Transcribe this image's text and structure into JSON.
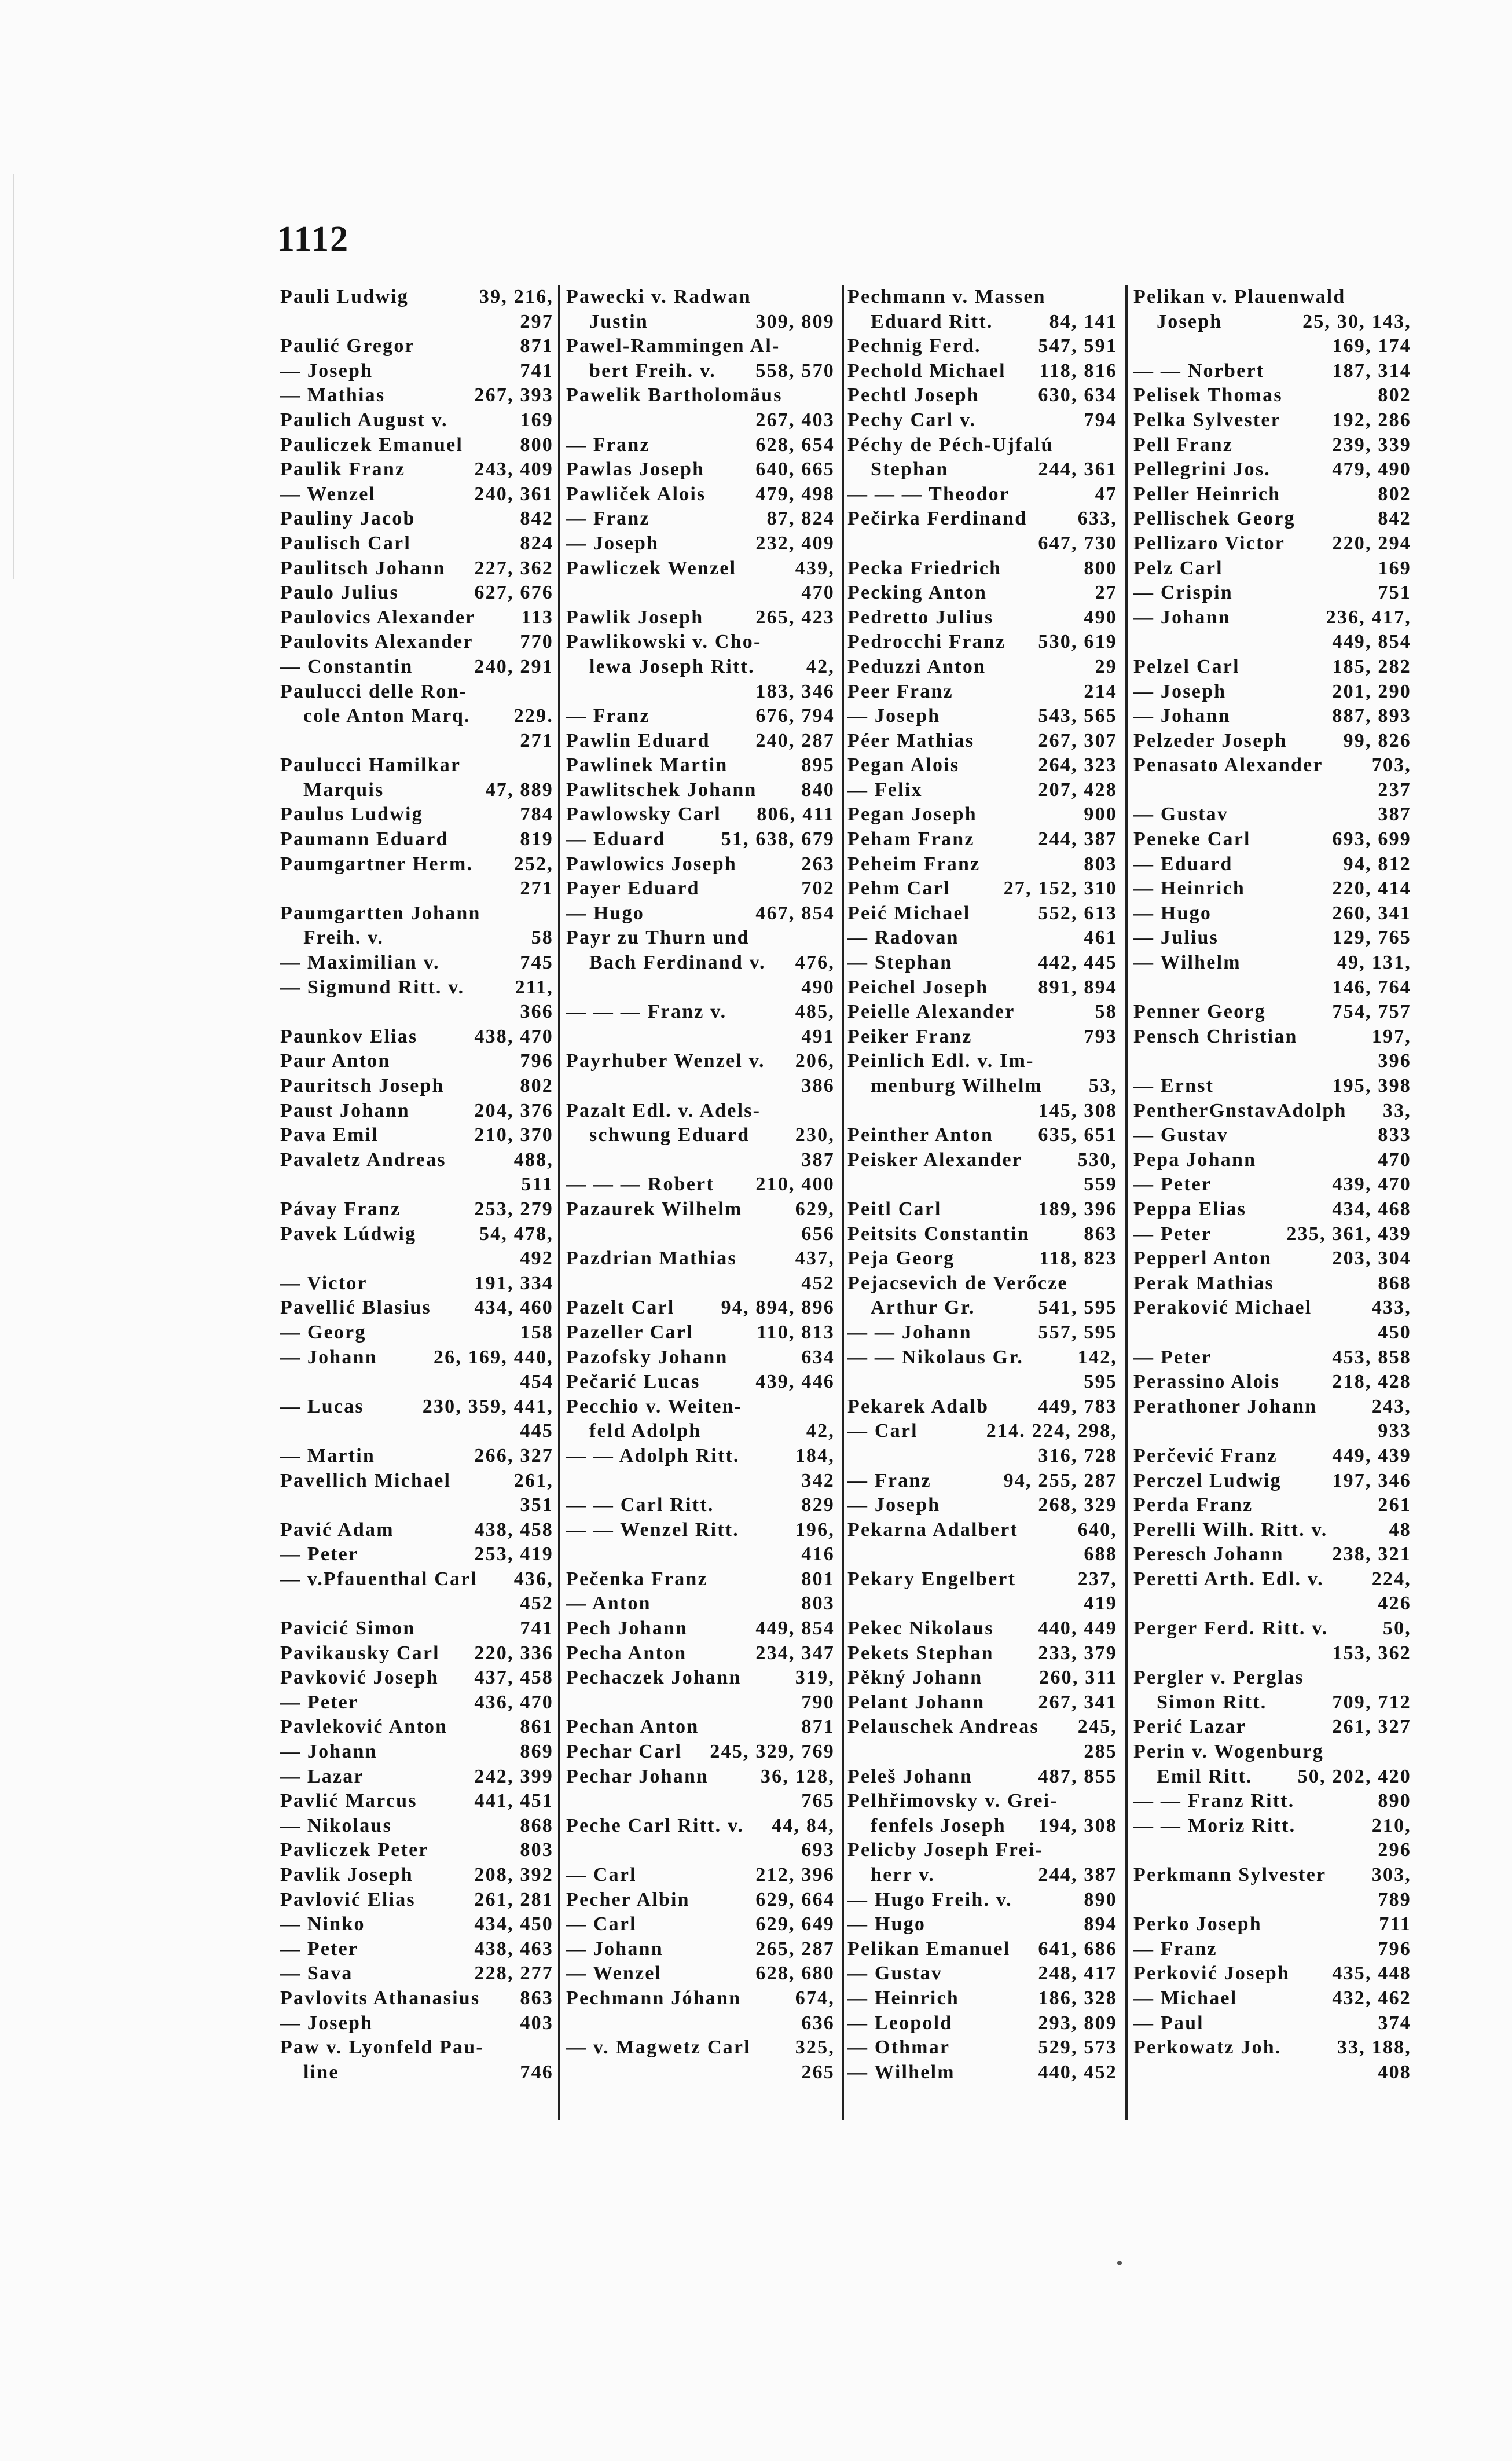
{
  "page_number": "1112",
  "columns": [
    [
      {
        "t": "Pauli Ludwig",
        "p": "39, 216,"
      },
      {
        "t": "",
        "p": "297"
      },
      {
        "t": "Paulić Gregor",
        "p": "871"
      },
      {
        "t": "— Joseph",
        "p": "741"
      },
      {
        "t": "— Mathias",
        "p": "267, 393"
      },
      {
        "t": "Paulich August v.",
        "p": "169"
      },
      {
        "t": "Pauliczek Emanuel",
        "p": "800"
      },
      {
        "t": "Paulik Franz",
        "p": "243, 409"
      },
      {
        "t": "— Wenzel",
        "p": "240, 361"
      },
      {
        "t": "Pauliny Jacob",
        "p": "842"
      },
      {
        "t": "Paulisch Carl",
        "p": "824"
      },
      {
        "t": "Paulitsch Johann",
        "p": "227, 362"
      },
      {
        "t": "Paulo Julius",
        "p": "627, 676"
      },
      {
        "t": "Paulovics Alexander",
        "p": "113"
      },
      {
        "t": "Paulovits Alexander",
        "p": "770"
      },
      {
        "t": "— Constantin",
        "p": "240, 291"
      },
      {
        "t": "Paulucci delle Ron-",
        "p": ""
      },
      {
        "t": "cole Anton Marq.",
        "p": "229.",
        "c": true
      },
      {
        "t": "",
        "p": "271"
      },
      {
        "t": "Paulucci Hamilkar",
        "p": ""
      },
      {
        "t": "Marquis",
        "p": "47, 889",
        "c": true
      },
      {
        "t": "Paulus Ludwig",
        "p": "784"
      },
      {
        "t": "Paumann Eduard",
        "p": "819"
      },
      {
        "t": "Paumgartner Herm.",
        "p": "252,"
      },
      {
        "t": "",
        "p": "271"
      },
      {
        "t": "Paumgartten Johann",
        "p": ""
      },
      {
        "t": "Freih. v.",
        "p": "58",
        "c": true
      },
      {
        "t": "— Maximilian v.",
        "p": "745"
      },
      {
        "t": "— Sigmund Ritt. v.",
        "p": "211,"
      },
      {
        "t": "",
        "p": "366"
      },
      {
        "t": "Paunkov Elias",
        "p": "438, 470"
      },
      {
        "t": "Paur Anton",
        "p": "796"
      },
      {
        "t": "Pauritsch Joseph",
        "p": "802"
      },
      {
        "t": "Paust Johann",
        "p": "204, 376"
      },
      {
        "t": "Pava Emil",
        "p": "210, 370"
      },
      {
        "t": "Pavaletz Andreas",
        "p": "488,"
      },
      {
        "t": "",
        "p": "511"
      },
      {
        "t": "Pávay Franz",
        "p": "253, 279"
      },
      {
        "t": "Pavek Lúdwig",
        "p": "54, 478,"
      },
      {
        "t": "",
        "p": "492"
      },
      {
        "t": "— Victor",
        "p": "191, 334"
      },
      {
        "t": "Pavellić Blasius",
        "p": "434, 460"
      },
      {
        "t": "— Georg",
        "p": "158"
      },
      {
        "t": "— Johann",
        "p": "26, 169, 440,"
      },
      {
        "t": "",
        "p": "454"
      },
      {
        "t": "— Lucas",
        "p": "230, 359, 441,"
      },
      {
        "t": "",
        "p": "445"
      },
      {
        "t": "— Martin",
        "p": "266, 327"
      },
      {
        "t": "Pavellich Michael",
        "p": "261,"
      },
      {
        "t": "",
        "p": "351"
      },
      {
        "t": "Pavić Adam",
        "p": "438, 458"
      },
      {
        "t": "— Peter",
        "p": "253, 419"
      },
      {
        "t": "— v.Pfauenthal Carl",
        "p": "436,"
      },
      {
        "t": "",
        "p": "452"
      },
      {
        "t": "Pavicić Simon",
        "p": "741"
      },
      {
        "t": "Pavikausky Carl",
        "p": "220, 336"
      },
      {
        "t": "Pavković Joseph",
        "p": "437, 458"
      },
      {
        "t": "— Peter",
        "p": "436, 470"
      },
      {
        "t": "Pavleković Anton",
        "p": "861"
      },
      {
        "t": "— Johann",
        "p": "869"
      },
      {
        "t": "— Lazar",
        "p": "242, 399"
      },
      {
        "t": "Pavlić Marcus",
        "p": "441, 451"
      },
      {
        "t": "— Nikolaus",
        "p": "868"
      },
      {
        "t": "Pavliczek Peter",
        "p": "803"
      },
      {
        "t": "Pavlik Joseph",
        "p": "208, 392"
      },
      {
        "t": "Pavlović Elias",
        "p": "261, 281"
      },
      {
        "t": "— Ninko",
        "p": "434, 450"
      },
      {
        "t": "— Peter",
        "p": "438, 463"
      },
      {
        "t": "— Sava",
        "p": "228, 277"
      },
      {
        "t": "Pavlovits Athanasius",
        "p": "863"
      },
      {
        "t": "— Joseph",
        "p": "403"
      },
      {
        "t": "Paw v. Lyonfeld Pau-",
        "p": ""
      },
      {
        "t": "line",
        "p": "746",
        "c": true
      }
    ],
    [
      {
        "t": "Pawecki v. Radwan",
        "p": ""
      },
      {
        "t": "Justin",
        "p": "309, 809",
        "c": true
      },
      {
        "t": "Pawel-Rammingen Al-",
        "p": ""
      },
      {
        "t": "bert Freih. v.",
        "p": "558, 570",
        "c": true
      },
      {
        "t": "Pawelik Bartholomäus",
        "p": ""
      },
      {
        "t": "",
        "p": "267, 403"
      },
      {
        "t": "— Franz",
        "p": "628, 654"
      },
      {
        "t": "Pawlas Joseph",
        "p": "640, 665"
      },
      {
        "t": "Pawliček Alois",
        "p": "479, 498"
      },
      {
        "t": "— Franz",
        "p": "87, 824"
      },
      {
        "t": "— Joseph",
        "p": "232, 409"
      },
      {
        "t": "Pawliczek Wenzel",
        "p": "439,"
      },
      {
        "t": "",
        "p": "470"
      },
      {
        "t": "Pawlik Joseph",
        "p": "265, 423"
      },
      {
        "t": "Pawlikowski v. Cho-",
        "p": ""
      },
      {
        "t": "lewa Joseph Ritt.",
        "p": "42,",
        "c": true
      },
      {
        "t": "",
        "p": "183, 346"
      },
      {
        "t": "— Franz",
        "p": "676, 794"
      },
      {
        "t": "Pawlin Eduard",
        "p": "240, 287"
      },
      {
        "t": "Pawlinek Martin",
        "p": "895"
      },
      {
        "t": "Pawlitschek Johann",
        "p": "840"
      },
      {
        "t": "Pawlowsky Carl",
        "p": "806, 411"
      },
      {
        "t": "— Eduard",
        "p": "51, 638, 679"
      },
      {
        "t": "Pawlowics Joseph",
        "p": "263"
      },
      {
        "t": "Payer Eduard",
        "p": "702"
      },
      {
        "t": "— Hugo",
        "p": "467, 854"
      },
      {
        "t": "Payr zu Thurn und",
        "p": ""
      },
      {
        "t": "Bach Ferdinand v.",
        "p": "476,",
        "c": true
      },
      {
        "t": "",
        "p": "490"
      },
      {
        "t": "— — — Franz v.",
        "p": "485,"
      },
      {
        "t": "",
        "p": "491"
      },
      {
        "t": "Payrhuber Wenzel v.",
        "p": "206,"
      },
      {
        "t": "",
        "p": "386"
      },
      {
        "t": "Pazalt Edl. v. Adels-",
        "p": ""
      },
      {
        "t": "schwung Eduard",
        "p": "230,",
        "c": true
      },
      {
        "t": "",
        "p": "387"
      },
      {
        "t": "— — — Robert",
        "p": "210, 400"
      },
      {
        "t": "Pazaurek Wilhelm",
        "p": "629,"
      },
      {
        "t": "",
        "p": "656"
      },
      {
        "t": "Pazdrian Mathias",
        "p": "437,"
      },
      {
        "t": "",
        "p": "452"
      },
      {
        "t": "Pazelt Carl",
        "p": "94, 894, 896"
      },
      {
        "t": "Pazeller Carl",
        "p": "110, 813"
      },
      {
        "t": "Pazofsky Johann",
        "p": "634"
      },
      {
        "t": "Pečarić Lucas",
        "p": "439, 446"
      },
      {
        "t": "Pecchio v. Weiten-",
        "p": ""
      },
      {
        "t": "feld Adolph",
        "p": "42,",
        "c": true
      },
      {
        "t": "— — Adolph Ritt.",
        "p": "184,"
      },
      {
        "t": "",
        "p": "342"
      },
      {
        "t": "— — Carl Ritt.",
        "p": "829"
      },
      {
        "t": "— — Wenzel Ritt.",
        "p": "196,"
      },
      {
        "t": "",
        "p": "416"
      },
      {
        "t": "Pečenka Franz",
        "p": "801"
      },
      {
        "t": "— Anton",
        "p": "803"
      },
      {
        "t": "Pech Johann",
        "p": "449, 854"
      },
      {
        "t": "Pecha Anton",
        "p": "234, 347"
      },
      {
        "t": "Pechaczek Johann",
        "p": "319,"
      },
      {
        "t": "",
        "p": "790"
      },
      {
        "t": "Pechan Anton",
        "p": "871"
      },
      {
        "t": "Pechar Carl",
        "p": "245, 329, 769"
      },
      {
        "t": "Pechar Johann",
        "p": "36, 128,"
      },
      {
        "t": "",
        "p": "765"
      },
      {
        "t": "Peche Carl Ritt. v.",
        "p": "44, 84,"
      },
      {
        "t": "",
        "p": "693"
      },
      {
        "t": "— Carl",
        "p": "212, 396"
      },
      {
        "t": "Pecher Albin",
        "p": "629, 664"
      },
      {
        "t": "— Carl",
        "p": "629, 649"
      },
      {
        "t": "— Johann",
        "p": "265, 287"
      },
      {
        "t": "— Wenzel",
        "p": "628, 680"
      },
      {
        "t": "Pechmann Jóhann",
        "p": "674,"
      },
      {
        "t": "",
        "p": "636"
      },
      {
        "t": "— v. Magwetz Carl",
        "p": "325,"
      },
      {
        "t": "",
        "p": "265"
      }
    ],
    [
      {
        "t": "Pechmann v. Massen",
        "p": ""
      },
      {
        "t": "Eduard Ritt.",
        "p": "84, 141",
        "c": true
      },
      {
        "t": "Pechnig Ferd.",
        "p": "547, 591"
      },
      {
        "t": "Pechold Michael",
        "p": "118, 816"
      },
      {
        "t": "Pechtl Joseph",
        "p": "630, 634"
      },
      {
        "t": "Pechy Carl v.",
        "p": "794"
      },
      {
        "t": "Péchy de Péch-Ujfalú",
        "p": ""
      },
      {
        "t": "Stephan",
        "p": "244, 361",
        "c": true
      },
      {
        "t": "— — — Theodor",
        "p": "47"
      },
      {
        "t": "Pečirka Ferdinand",
        "p": "633,"
      },
      {
        "t": "",
        "p": "647, 730"
      },
      {
        "t": "Pecka Friedrich",
        "p": "800"
      },
      {
        "t": "Pecking Anton",
        "p": "27"
      },
      {
        "t": "Pedretto Julius",
        "p": "490"
      },
      {
        "t": "Pedrocchi Franz",
        "p": "530, 619"
      },
      {
        "t": "Peduzzi Anton",
        "p": "29"
      },
      {
        "t": "Peer Franz",
        "p": "214"
      },
      {
        "t": "— Joseph",
        "p": "543, 565"
      },
      {
        "t": "Péer Mathias",
        "p": "267, 307"
      },
      {
        "t": "Pegan Alois",
        "p": "264, 323"
      },
      {
        "t": "— Felix",
        "p": "207, 428"
      },
      {
        "t": "Pegan Joseph",
        "p": "900"
      },
      {
        "t": "Peham Franz",
        "p": "244, 387"
      },
      {
        "t": "Peheim Franz",
        "p": "803"
      },
      {
        "t": "Pehm Carl",
        "p": "27, 152, 310"
      },
      {
        "t": "Peić Michael",
        "p": "552, 613"
      },
      {
        "t": "— Radovan",
        "p": "461"
      },
      {
        "t": "— Stephan",
        "p": "442, 445"
      },
      {
        "t": "Peichel Joseph",
        "p": "891, 894"
      },
      {
        "t": "Peielle Alexander",
        "p": "58"
      },
      {
        "t": "Peiker Franz",
        "p": "793"
      },
      {
        "t": "Peinlich Edl. v. Im-",
        "p": ""
      },
      {
        "t": "menburg Wilhelm",
        "p": "53,",
        "c": true
      },
      {
        "t": "",
        "p": "145, 308"
      },
      {
        "t": "Peinther Anton",
        "p": "635, 651"
      },
      {
        "t": "Peisker Alexander",
        "p": "530,"
      },
      {
        "t": "",
        "p": "559"
      },
      {
        "t": "Peitl Carl",
        "p": "189, 396"
      },
      {
        "t": "Peitsits Constantin",
        "p": "863"
      },
      {
        "t": "Peja Georg",
        "p": "118, 823"
      },
      {
        "t": "Pejacsevich de Verőcze",
        "p": ""
      },
      {
        "t": "Arthur Gr.",
        "p": "541, 595",
        "c": true
      },
      {
        "t": "— — Johann",
        "p": "557, 595"
      },
      {
        "t": "— — Nikolaus Gr.",
        "p": "142,"
      },
      {
        "t": "",
        "p": "595"
      },
      {
        "t": "Pekarek Adalb",
        "p": "449, 783"
      },
      {
        "t": "— Carl",
        "p": "214. 224, 298,"
      },
      {
        "t": "",
        "p": "316, 728"
      },
      {
        "t": "— Franz",
        "p": "94, 255, 287"
      },
      {
        "t": "— Joseph",
        "p": "268, 329"
      },
      {
        "t": "Pekarna Adalbert",
        "p": "640,"
      },
      {
        "t": "",
        "p": "688"
      },
      {
        "t": "Pekary Engelbert",
        "p": "237,"
      },
      {
        "t": "",
        "p": "419"
      },
      {
        "t": "Pekec Nikolaus",
        "p": "440, 449"
      },
      {
        "t": "Pekets Stephan",
        "p": "233, 379"
      },
      {
        "t": "Pěkný Johann",
        "p": "260, 311"
      },
      {
        "t": "Pelant Johann",
        "p": "267, 341"
      },
      {
        "t": "Pelauschek Andreas",
        "p": "245,"
      },
      {
        "t": "",
        "p": "285"
      },
      {
        "t": "Peleš Johann",
        "p": "487, 855"
      },
      {
        "t": "Pelhřimovsky v. Grei-",
        "p": ""
      },
      {
        "t": "fenfels Joseph",
        "p": "194, 308",
        "c": true
      },
      {
        "t": "Pelicby Joseph Frei-",
        "p": ""
      },
      {
        "t": "herr v.",
        "p": "244, 387",
        "c": true
      },
      {
        "t": "— Hugo Freih. v.",
        "p": "890"
      },
      {
        "t": "— Hugo",
        "p": "894"
      },
      {
        "t": "Pelikan Emanuel",
        "p": "641, 686"
      },
      {
        "t": "— Gustav",
        "p": "248, 417"
      },
      {
        "t": "— Heinrich",
        "p": "186, 328"
      },
      {
        "t": "— Leopold",
        "p": "293, 809"
      },
      {
        "t": "— Othmar",
        "p": "529, 573"
      },
      {
        "t": "— Wilhelm",
        "p": "440, 452"
      }
    ],
    [
      {
        "t": "Pelikan v. Plauenwald",
        "p": ""
      },
      {
        "t": "Joseph",
        "p": "25, 30, 143,",
        "c": true
      },
      {
        "t": "",
        "p": "169, 174"
      },
      {
        "t": "— — Norbert",
        "p": "187, 314"
      },
      {
        "t": "Pelisek Thomas",
        "p": "802"
      },
      {
        "t": "Pelka Sylvester",
        "p": "192, 286"
      },
      {
        "t": "Pell Franz",
        "p": "239, 339"
      },
      {
        "t": "Pellegrini Jos.",
        "p": "479, 490"
      },
      {
        "t": "Peller Heinrich",
        "p": "802"
      },
      {
        "t": "Pellischek Georg",
        "p": "842"
      },
      {
        "t": "Pellizaro Victor",
        "p": "220, 294"
      },
      {
        "t": "Pelz Carl",
        "p": "169"
      },
      {
        "t": "— Crispin",
        "p": "751"
      },
      {
        "t": "— Johann",
        "p": "236, 417,"
      },
      {
        "t": "",
        "p": "449, 854"
      },
      {
        "t": "Pelzel Carl",
        "p": "185, 282"
      },
      {
        "t": "— Joseph",
        "p": "201, 290"
      },
      {
        "t": "— Johann",
        "p": "887, 893"
      },
      {
        "t": "Pelzeder Joseph",
        "p": "99, 826"
      },
      {
        "t": "Penasato Alexander",
        "p": "703,"
      },
      {
        "t": "",
        "p": "237"
      },
      {
        "t": "— Gustav",
        "p": "387"
      },
      {
        "t": "Peneke Carl",
        "p": "693, 699"
      },
      {
        "t": "— Eduard",
        "p": "94, 812"
      },
      {
        "t": "— Heinrich",
        "p": "220, 414"
      },
      {
        "t": "— Hugo",
        "p": "260, 341"
      },
      {
        "t": "— Julius",
        "p": "129, 765"
      },
      {
        "t": "— Wilhelm",
        "p": "49, 131,"
      },
      {
        "t": "",
        "p": "146, 764"
      },
      {
        "t": "Penner Georg",
        "p": "754, 757"
      },
      {
        "t": "Pensch Christian",
        "p": "197,"
      },
      {
        "t": "",
        "p": "396"
      },
      {
        "t": "— Ernst",
        "p": "195, 398"
      },
      {
        "t": "PentherGnstavAdolph",
        "p": "33,"
      },
      {
        "t": "— Gustav",
        "p": "833"
      },
      {
        "t": "Pepa Johann",
        "p": "470"
      },
      {
        "t": "— Peter",
        "p": "439, 470"
      },
      {
        "t": "Peppa Elias",
        "p": "434, 468"
      },
      {
        "t": "— Peter",
        "p": "235, 361, 439"
      },
      {
        "t": "Pepperl Anton",
        "p": "203, 304"
      },
      {
        "t": "Perak Mathias",
        "p": "868"
      },
      {
        "t": "Peraković Michael",
        "p": "433,"
      },
      {
        "t": "",
        "p": "450"
      },
      {
        "t": "— Peter",
        "p": "453, 858"
      },
      {
        "t": "Perassino Alois",
        "p": "218, 428"
      },
      {
        "t": "Perathoner Johann",
        "p": "243,"
      },
      {
        "t": "",
        "p": "933"
      },
      {
        "t": "Perčević Franz",
        "p": "449, 439"
      },
      {
        "t": "Perczel Ludwig",
        "p": "197, 346"
      },
      {
        "t": "Perda Franz",
        "p": "261"
      },
      {
        "t": "Perelli Wilh. Ritt. v.",
        "p": "48"
      },
      {
        "t": "Peresch Johann",
        "p": "238, 321"
      },
      {
        "t": "Peretti Arth. Edl. v.",
        "p": "224,"
      },
      {
        "t": "",
        "p": "426"
      },
      {
        "t": "Perger Ferd. Ritt. v.",
        "p": "50,"
      },
      {
        "t": "",
        "p": "153, 362"
      },
      {
        "t": "Pergler v. Perglas",
        "p": ""
      },
      {
        "t": "Simon Ritt.",
        "p": "709, 712",
        "c": true
      },
      {
        "t": "Perić Lazar",
        "p": "261, 327"
      },
      {
        "t": "Perin v. Wogenburg",
        "p": ""
      },
      {
        "t": "Emil Ritt.",
        "p": "50, 202, 420",
        "c": true
      },
      {
        "t": "— — Franz Ritt.",
        "p": "890"
      },
      {
        "t": "— — Moriz Ritt.",
        "p": "210,"
      },
      {
        "t": "",
        "p": "296"
      },
      {
        "t": "Perkmann Sylvester",
        "p": "303,"
      },
      {
        "t": "",
        "p": "789"
      },
      {
        "t": "Perko Joseph",
        "p": "711"
      },
      {
        "t": "— Franz",
        "p": "796"
      },
      {
        "t": "Perković Joseph",
        "p": "435, 448"
      },
      {
        "t": "— Michael",
        "p": "432, 462"
      },
      {
        "t": "— Paul",
        "p": "374"
      },
      {
        "t": "Perkowatz Joh.",
        "p": "33, 188,"
      },
      {
        "t": "",
        "p": "408"
      }
    ]
  ]
}
